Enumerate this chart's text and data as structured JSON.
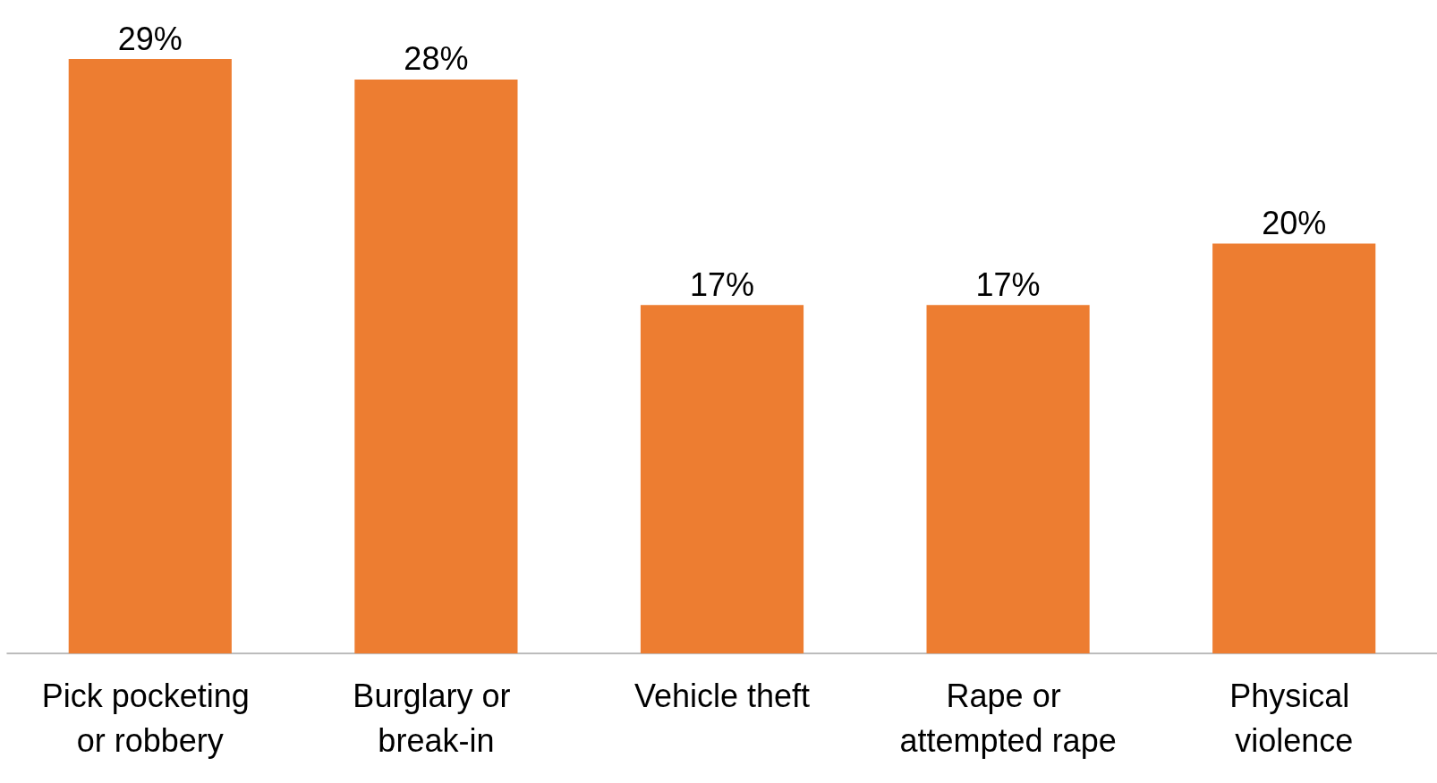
{
  "chart_data": {
    "type": "bar",
    "categories": [
      "Pick pocketing or robbery",
      "Burglary or break-in",
      "Vehicle theft",
      "Rape or attempted rape",
      "Physical violence"
    ],
    "values": [
      29,
      28,
      17,
      17,
      20
    ],
    "value_labels": [
      "29%",
      "28%",
      "17%",
      "17%",
      "20%"
    ],
    "color": "#ed7d31"
  }
}
